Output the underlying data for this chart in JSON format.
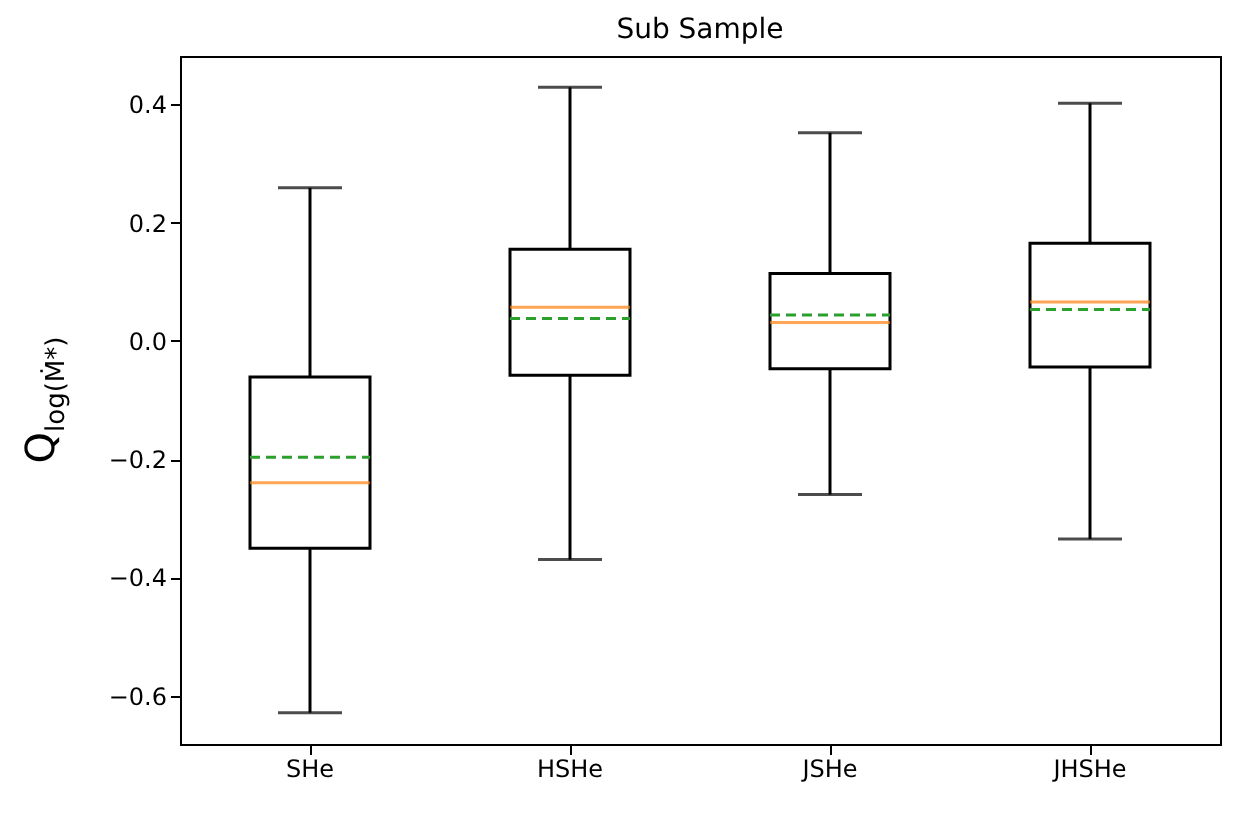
{
  "chart_data": {
    "type": "box",
    "title": "Sub Sample",
    "ylabel": "Q$_{log(Ṁ*)}$",
    "categories": [
      "SHe",
      "HSHe",
      "JSHe",
      "JHSHe"
    ],
    "boxes": [
      {
        "low": -0.629,
        "q1": -0.351,
        "median": -0.24,
        "q3": -0.061,
        "high": 0.259,
        "mean": -0.197
      },
      {
        "low": -0.37,
        "q1": -0.058,
        "median": 0.057,
        "q3": 0.155,
        "high": 0.429,
        "mean": 0.038
      },
      {
        "low": -0.26,
        "q1": -0.047,
        "median": 0.031,
        "q3": 0.114,
        "high": 0.352,
        "mean": 0.044
      },
      {
        "low": -0.335,
        "q1": -0.044,
        "median": 0.066,
        "q3": 0.165,
        "high": 0.402,
        "mean": 0.053
      }
    ],
    "ylim": [
      -0.682,
      0.482
    ],
    "yticks": [
      {
        "value": -0.6,
        "label": "−0.6"
      },
      {
        "value": -0.4,
        "label": "−0.4"
      },
      {
        "value": -0.2,
        "label": "−0.2"
      },
      {
        "value": 0,
        "label": "0.0"
      },
      {
        "value": 0.2,
        "label": "0.2"
      },
      {
        "value": 0.4,
        "label": "0.4"
      }
    ]
  }
}
